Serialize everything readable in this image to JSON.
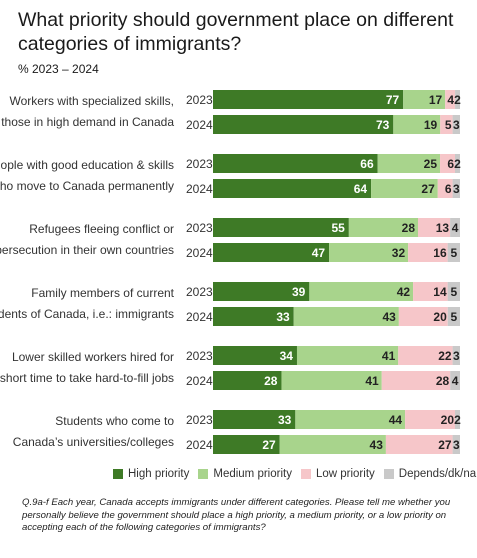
{
  "header": {
    "title": "What priority should government place on different categories of immigrants?",
    "subtitle": "%  2023 – 2024"
  },
  "footnote": {
    "text": "Q.9a-f  Each year, Canada accepts immigrants under different categories. Please tell me whether you personally believe the government should place a high priority, a medium priority, or a low priority on accepting each of the following categories of immigrants?"
  },
  "colors": {
    "high": "#3e7a26",
    "medium": "#a8d48c",
    "low": "#f6c6c9",
    "depends": "#c9c9c9"
  },
  "chart_data": {
    "type": "bar",
    "orientation": "horizontal",
    "stacked": true,
    "title": "What priority should government place on different categories of immigrants?",
    "subtitle": "%  2023 – 2024",
    "legend": [
      "High priority",
      "Medium priority",
      "Low priority",
      "Depends/dk/na"
    ],
    "legend_position": "bottom",
    "categories": [
      {
        "label": [
          "Workers with specialized skills,",
          "those in high demand in Canada"
        ],
        "rows": [
          {
            "year": "2023",
            "values": [
              77,
              17,
              4,
              2
            ]
          },
          {
            "year": "2024",
            "values": [
              73,
              19,
              5,
              3
            ]
          }
        ]
      },
      {
        "label": [
          "People with good education  & skills",
          "who move to Canada permanently"
        ],
        "rows": [
          {
            "year": "2023",
            "values": [
              66,
              25,
              6,
              2
            ]
          },
          {
            "year": "2024",
            "values": [
              64,
              27,
              6,
              3
            ]
          }
        ]
      },
      {
        "label": [
          "Refugees fleeing conflict or",
          "persecution in their own countries"
        ],
        "rows": [
          {
            "year": "2023",
            "values": [
              55,
              28,
              13,
              4
            ]
          },
          {
            "year": "2024",
            "values": [
              47,
              32,
              16,
              5
            ]
          }
        ]
      },
      {
        "label": [
          "Family members of current",
          "residents of Canada, i.e.: immigrants"
        ],
        "rows": [
          {
            "year": "2023",
            "values": [
              39,
              42,
              14,
              5
            ]
          },
          {
            "year": "2024",
            "values": [
              33,
              43,
              20,
              5
            ]
          }
        ]
      },
      {
        "label": [
          "Lower skilled workers hired for",
          "short time to take hard-to-fill jobs"
        ],
        "rows": [
          {
            "year": "2023",
            "values": [
              34,
              41,
              22,
              3
            ]
          },
          {
            "year": "2024",
            "values": [
              28,
              41,
              28,
              4
            ]
          }
        ]
      },
      {
        "label": [
          "Students who come to",
          "Canada’s universities/colleges"
        ],
        "rows": [
          {
            "year": "2023",
            "values": [
              33,
              44,
              20,
              2
            ]
          },
          {
            "year": "2024",
            "values": [
              27,
              43,
              27,
              3
            ]
          }
        ]
      }
    ]
  }
}
